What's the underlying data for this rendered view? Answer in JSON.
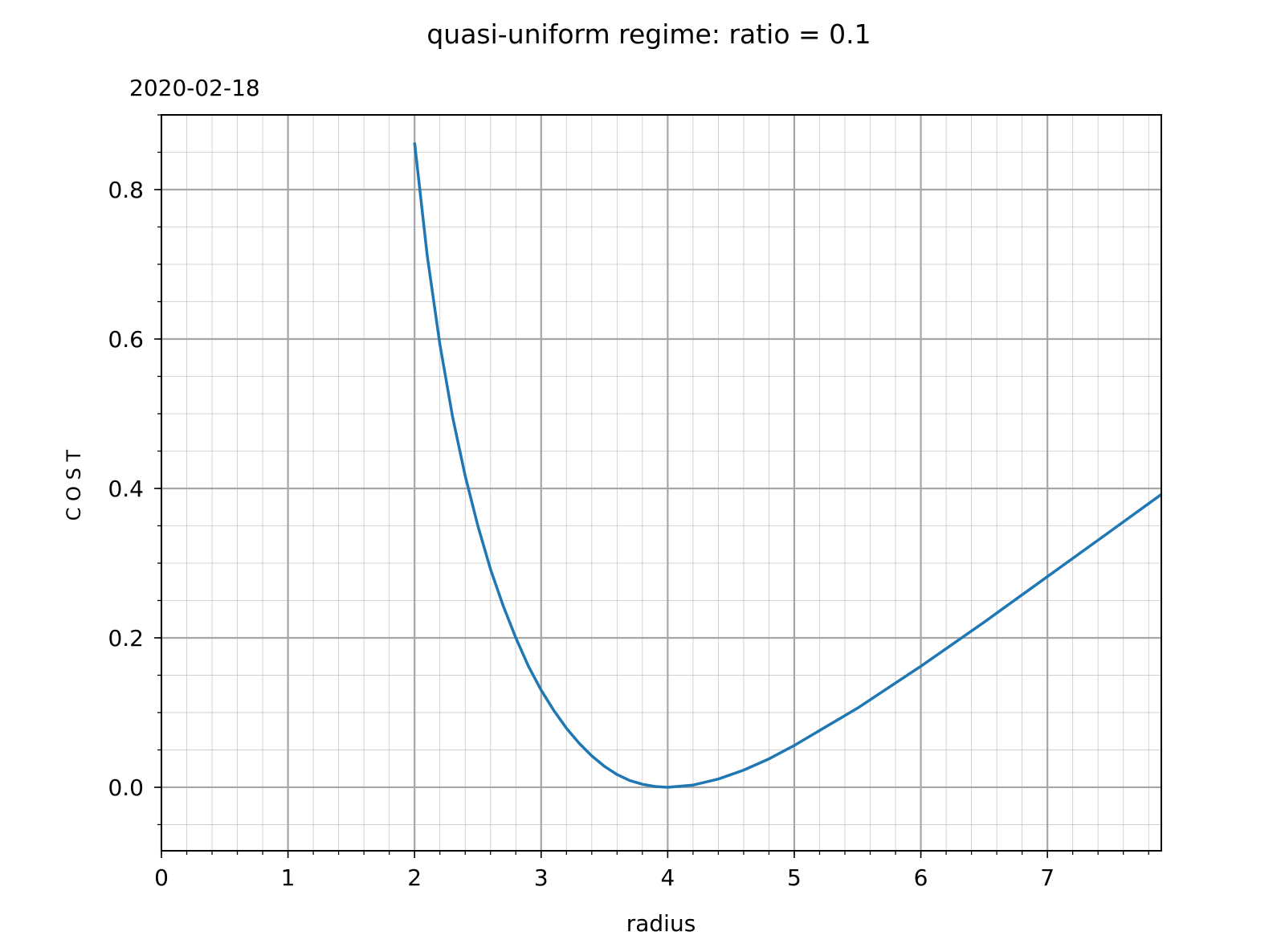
{
  "chart_data": {
    "type": "line",
    "title": "quasi-uniform regime: ratio = 0.1",
    "subtitle": "2020-02-18",
    "xlabel": "radius",
    "ylabel": "C O S T",
    "xlim": [
      0,
      7.9
    ],
    "ylim": [
      -0.085,
      0.9
    ],
    "xticks": [
      0,
      1,
      2,
      3,
      4,
      5,
      6,
      7
    ],
    "xtick_labels": [
      "0",
      "1",
      "2",
      "3",
      "4",
      "5",
      "6",
      "7"
    ],
    "yticks": [
      0.0,
      0.2,
      0.4,
      0.6,
      0.8
    ],
    "ytick_labels": [
      "0.0",
      "0.2",
      "0.4",
      "0.6",
      "0.8"
    ],
    "x_minor_step": 0.2,
    "y_minor_step": 0.05,
    "grid": true,
    "series": [
      {
        "color": "#1f77b4",
        "x": [
          2.0,
          2.1,
          2.2,
          2.3,
          2.4,
          2.5,
          2.6,
          2.7,
          2.8,
          2.9,
          3.0,
          3.1,
          3.2,
          3.3,
          3.4,
          3.5,
          3.6,
          3.7,
          3.8,
          3.9,
          4.0,
          4.2,
          4.4,
          4.6,
          4.8,
          5.0,
          5.5,
          6.0,
          6.5,
          7.0,
          7.5,
          7.9
        ],
        "values": [
          0.863,
          0.712,
          0.593,
          0.496,
          0.417,
          0.35,
          0.292,
          0.243,
          0.2,
          0.162,
          0.13,
          0.103,
          0.079,
          0.059,
          0.042,
          0.028,
          0.017,
          0.009,
          0.004,
          0.001,
          0.0,
          0.003,
          0.011,
          0.023,
          0.038,
          0.056,
          0.106,
          0.162,
          0.221,
          0.282,
          0.343,
          0.392
        ]
      }
    ]
  }
}
